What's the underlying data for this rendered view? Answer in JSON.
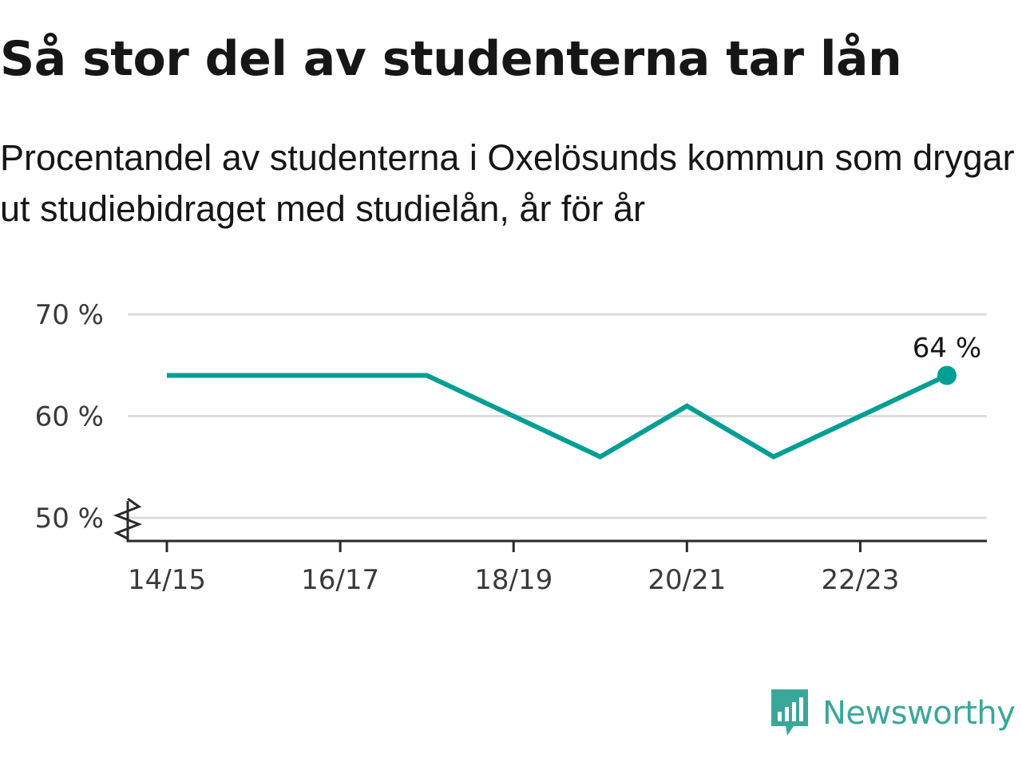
{
  "header": {
    "title": "Så stor del av studenterna tar lån",
    "subtitle": "Procentandel av studenterna i Oxelösunds kommun som drygar ut studiebidraget med studielån, år för år"
  },
  "chart_data": {
    "type": "line",
    "x": [
      "14/15",
      "15/16",
      "16/17",
      "17/18",
      "18/19",
      "19/20",
      "20/21",
      "21/22",
      "22/23",
      "23/24"
    ],
    "series": [
      {
        "values": [
          64,
          64,
          64,
          64,
          60,
          56,
          61,
          56,
          60,
          64
        ],
        "color": "#009e94"
      }
    ],
    "x_tick_labels": [
      "14/15",
      "16/17",
      "18/19",
      "20/21",
      "22/23"
    ],
    "y_ticks": [
      50,
      60,
      70
    ],
    "y_tick_labels": [
      "50 %",
      "60 %",
      "70 %"
    ],
    "ylim": [
      50,
      70
    ],
    "axis_break": true,
    "grid": true,
    "end_label": "64 %",
    "xlabel": "",
    "ylabel": ""
  },
  "brand": {
    "name": "Newsworthy",
    "icon": "newsworthy-logo-icon",
    "color": "#3aa79c"
  }
}
